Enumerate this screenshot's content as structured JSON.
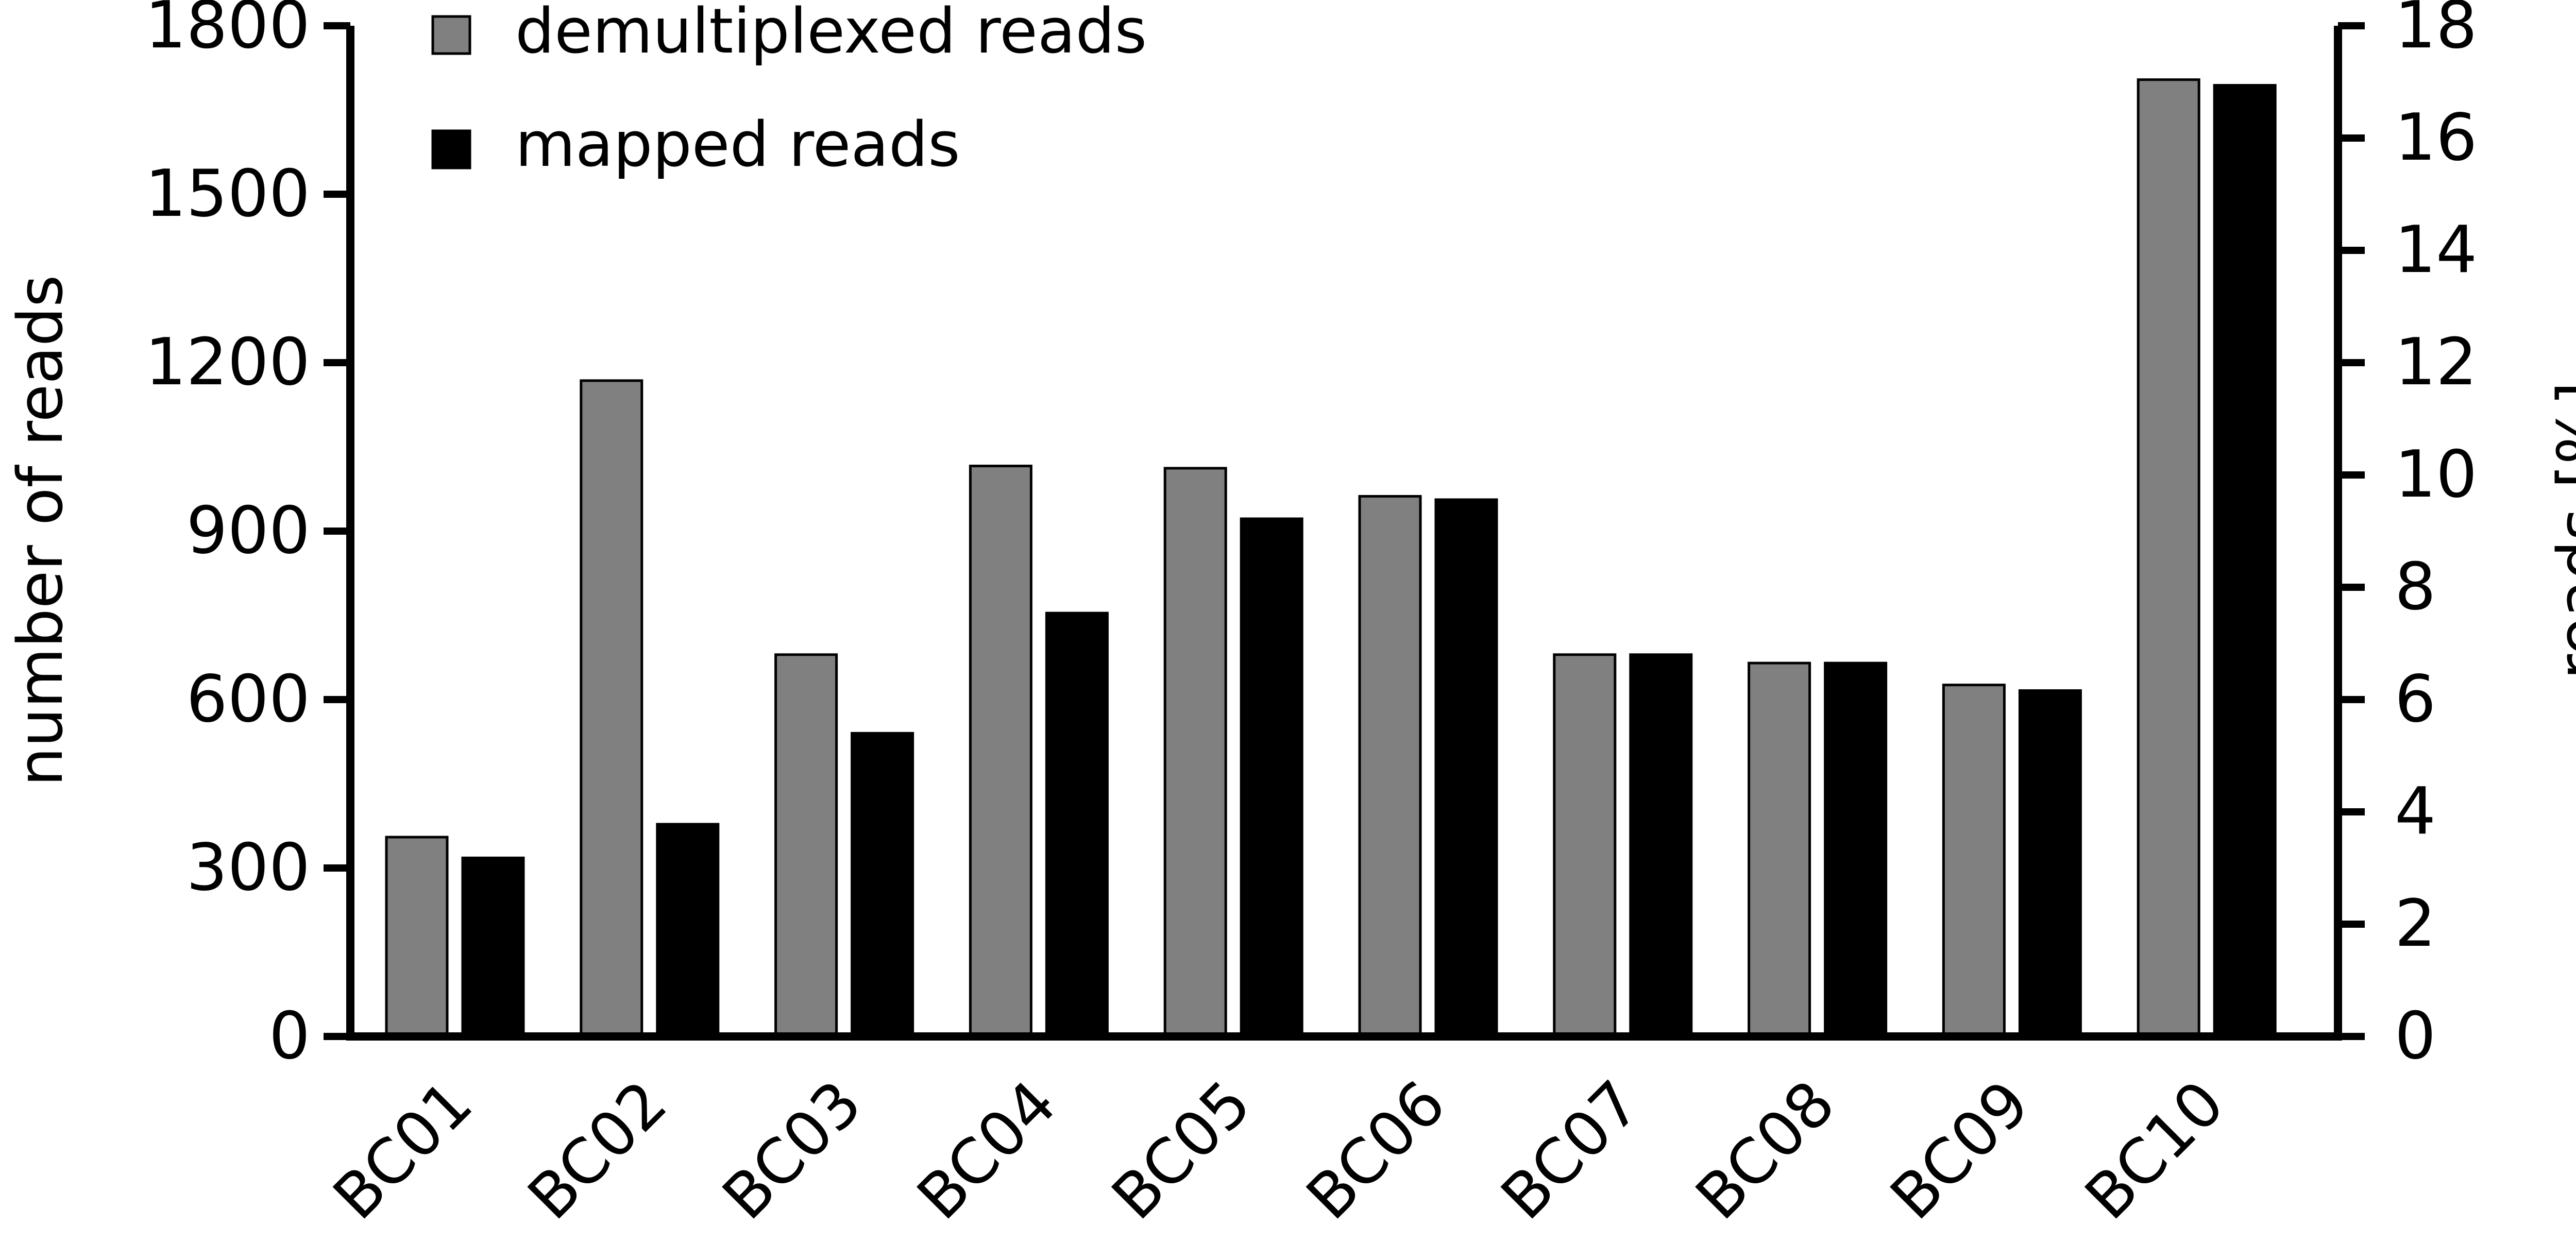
{
  "chart_data": {
    "type": "bar",
    "categories": [
      "BC01",
      "BC02",
      "BC03",
      "BC04",
      "BC05",
      "BC06",
      "BC07",
      "BC08",
      "BC09",
      "BC10"
    ],
    "series": [
      {
        "name": "demultiplexed reads",
        "color": "#808080",
        "values": [
          355,
          1168,
          680,
          1016,
          1012,
          962,
          680,
          665,
          626,
          1704
        ]
      },
      {
        "name": "mapped reads",
        "color": "#000000",
        "values": [
          318,
          378,
          540,
          754,
          922,
          956,
          680,
          665,
          616,
          1694
        ]
      }
    ],
    "ylabel": "number of reads",
    "ylabel_right": "reads [%]",
    "ylim": [
      0,
      1800
    ],
    "yticks": [
      "0",
      "300",
      "600",
      "900",
      "1200",
      "1500",
      "1800"
    ],
    "y2lim": [
      0,
      18
    ],
    "y2ticks": [
      "0",
      "2",
      "4",
      "6",
      "8",
      "10",
      "12",
      "14",
      "16",
      "18"
    ],
    "legend_position": "top-left",
    "grid": false
  }
}
